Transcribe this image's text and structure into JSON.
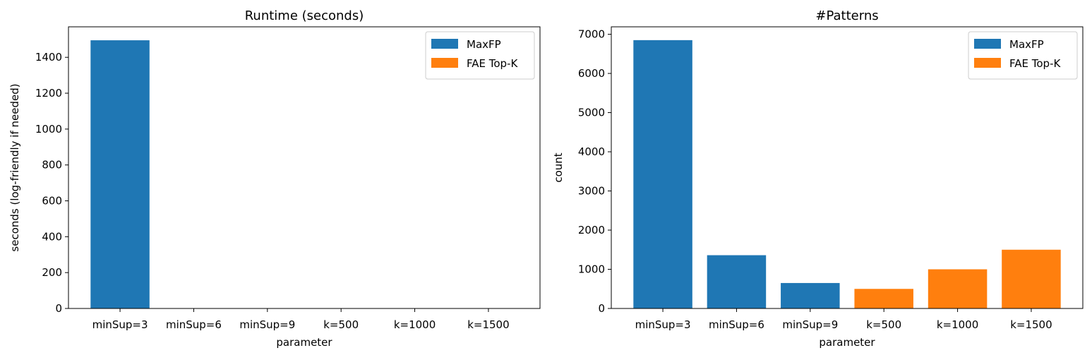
{
  "chart_data": [
    {
      "type": "bar",
      "title": "Runtime (seconds)",
      "xlabel": "parameter",
      "ylabel": "seconds (log-friendly if needed)",
      "categories": [
        "minSup=3",
        "minSup=6",
        "minSup=9",
        "k=500",
        "k=1000",
        "k=1500"
      ],
      "series": [
        {
          "name": "MaxFP",
          "color": "#1f77b4",
          "values": [
            1495,
            0.5,
            0.3,
            null,
            null,
            null
          ]
        },
        {
          "name": "FAE Top-K",
          "color": "#ff7f0e",
          "values": [
            null,
            null,
            null,
            0.2,
            0.3,
            0.4
          ]
        }
      ],
      "ylim": [
        0,
        1570
      ],
      "yticks": [
        0,
        200,
        400,
        600,
        800,
        1000,
        1200,
        1400
      ],
      "grid": false,
      "legend": "top-right"
    },
    {
      "type": "bar",
      "title": "#Patterns",
      "xlabel": "parameter",
      "ylabel": "count",
      "categories": [
        "minSup=3",
        "minSup=6",
        "minSup=9",
        "k=500",
        "k=1000",
        "k=1500"
      ],
      "series": [
        {
          "name": "MaxFP",
          "color": "#1f77b4",
          "values": [
            6850,
            1360,
            650,
            null,
            null,
            null
          ]
        },
        {
          "name": "FAE Top-K",
          "color": "#ff7f0e",
          "values": [
            null,
            null,
            null,
            500,
            1000,
            1500
          ]
        }
      ],
      "ylim": [
        0,
        7190
      ],
      "yticks": [
        0,
        1000,
        2000,
        3000,
        4000,
        5000,
        6000,
        7000
      ],
      "grid": false,
      "legend": "top-right"
    }
  ]
}
